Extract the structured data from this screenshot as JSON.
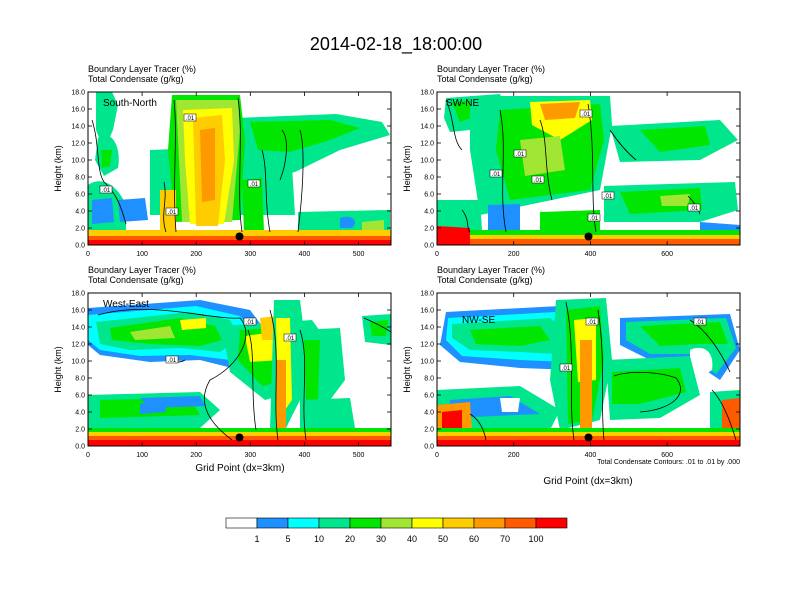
{
  "title": "2014-02-18_18:00:00",
  "x_axis_label": "Grid Point (dx=3km)",
  "contour_note": "Total Condensate Contours: .01 to .01 by .000",
  "contour_label": ".01",
  "colorbar": {
    "colors": [
      "#ffffff",
      "#1e90ff",
      "#00ffff",
      "#00e68c",
      "#00e600",
      "#a0e632",
      "#ffff00",
      "#ffcc00",
      "#ff9900",
      "#ff5a00",
      "#ff0000"
    ],
    "labels": [
      "1",
      "5",
      "10",
      "20",
      "30",
      "40",
      "50",
      "60",
      "70",
      "100"
    ]
  },
  "chart_data": [
    {
      "type": "heatmap",
      "name": "South-North",
      "header_line1": "Boundary Layer Tracer   (%)",
      "header_line2": "Total Condensate   (g/kg)",
      "ylabel": "Height (km)",
      "xlim": [
        0,
        560
      ],
      "ylim": [
        0,
        18
      ],
      "xticks": [
        "0",
        "100",
        "200",
        "300",
        "400",
        "500"
      ],
      "yticks": [
        "0.0",
        "2.0",
        "4.0",
        "6.0",
        "8.0",
        "10.0",
        "12.0",
        "14.0",
        "16.0",
        "18.0"
      ],
      "marker": {
        "x": 280,
        "y": 1.0
      }
    },
    {
      "type": "heatmap",
      "name": "SW-NE",
      "header_line1": "Boundary Layer Tracer   (%)",
      "header_line2": "Total Condensate   (g/kg)",
      "ylabel": "Height (km)",
      "xlim": [
        0,
        790
      ],
      "ylim": [
        0,
        18
      ],
      "xticks": [
        "0",
        "200",
        "400",
        "600"
      ],
      "yticks": [
        "0.0",
        "2.0",
        "4.0",
        "6.0",
        "8.0",
        "10.0",
        "12.0",
        "14.0",
        "16.0",
        "18.0"
      ],
      "marker": {
        "x": 395,
        "y": 1.0
      }
    },
    {
      "type": "heatmap",
      "name": "West-East",
      "header_line1": "Boundary Layer Tracer   (%)",
      "header_line2": "Total Condensate   (g/kg)",
      "ylabel": "Height (km)",
      "xlim": [
        0,
        560
      ],
      "ylim": [
        0,
        18
      ],
      "xticks": [
        "0",
        "100",
        "200",
        "300",
        "400",
        "500"
      ],
      "yticks": [
        "0.0",
        "2.0",
        "4.0",
        "6.0",
        "8.0",
        "10.0",
        "12.0",
        "14.0",
        "16.0",
        "18.0"
      ],
      "marker": {
        "x": 280,
        "y": 1.0
      }
    },
    {
      "type": "heatmap",
      "name": "NW-SE",
      "header_line1": "Boundary Layer Tracer   (%)",
      "header_line2": "Total Condensate   (g/kg)",
      "ylabel": "Height (km)",
      "xlim": [
        0,
        790
      ],
      "ylim": [
        0,
        18
      ],
      "xticks": [
        "0",
        "200",
        "400",
        "600"
      ],
      "yticks": [
        "0.0",
        "2.0",
        "4.0",
        "6.0",
        "8.0",
        "10.0",
        "12.0",
        "14.0",
        "16.0",
        "18.0"
      ],
      "marker": {
        "x": 395,
        "y": 1.0
      }
    }
  ]
}
